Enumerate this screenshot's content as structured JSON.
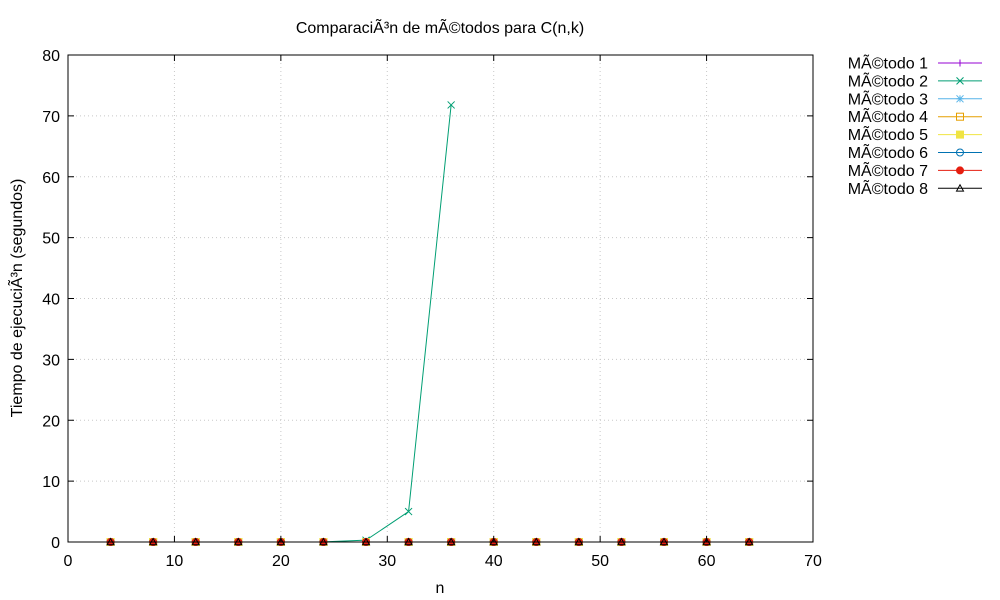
{
  "chart_data": {
    "type": "line",
    "title": "ComparaciÃ³n de mÃ©todos para C(n,k)",
    "xlabel": "n",
    "ylabel": "Tiempo de ejecuciÃ³n (segundos)",
    "xlim": [
      0,
      70
    ],
    "ylim": [
      0,
      80
    ],
    "xticks": [
      0,
      10,
      20,
      30,
      40,
      50,
      60,
      70
    ],
    "yticks": [
      0,
      10,
      20,
      30,
      40,
      50,
      60,
      70,
      80
    ],
    "xtick_labels": [
      "0",
      "10",
      "20",
      "30",
      "40",
      "50",
      "60",
      "70"
    ],
    "ytick_labels": [
      "0",
      "10",
      "20",
      "30",
      "40",
      "50",
      "60",
      "70",
      "80"
    ],
    "grid": true,
    "legend_position": "outside-right-top",
    "series": [
      {
        "name": "MÃ©todo 1",
        "color": "#9400d3",
        "marker": "plus",
        "points": [
          [
            4,
            0
          ],
          [
            8,
            0
          ],
          [
            12,
            0
          ],
          [
            16,
            0
          ],
          [
            20,
            0
          ],
          [
            24,
            0
          ],
          [
            28,
            0
          ],
          [
            32,
            0
          ],
          [
            36,
            0
          ],
          [
            40,
            0
          ],
          [
            44,
            0
          ],
          [
            48,
            0
          ],
          [
            52,
            0
          ],
          [
            56,
            0
          ],
          [
            60,
            0
          ],
          [
            64,
            0
          ]
        ]
      },
      {
        "name": "MÃ©todo 2",
        "color": "#009e73",
        "marker": "cross",
        "points": [
          [
            4,
            0
          ],
          [
            8,
            0
          ],
          [
            12,
            0
          ],
          [
            16,
            0
          ],
          [
            20,
            0
          ],
          [
            24,
            0.02
          ],
          [
            28,
            0.3
          ],
          [
            32,
            5
          ],
          [
            36,
            71.8
          ]
        ]
      },
      {
        "name": "MÃ©todo 3",
        "color": "#56b4e9",
        "marker": "star",
        "points": [
          [
            4,
            0
          ],
          [
            8,
            0
          ],
          [
            12,
            0
          ],
          [
            16,
            0
          ],
          [
            20,
            0
          ],
          [
            24,
            0
          ],
          [
            28,
            0
          ],
          [
            32,
            0
          ],
          [
            36,
            0
          ],
          [
            40,
            0
          ],
          [
            44,
            0
          ],
          [
            48,
            0
          ],
          [
            52,
            0
          ],
          [
            56,
            0
          ],
          [
            60,
            0
          ],
          [
            64,
            0
          ]
        ]
      },
      {
        "name": "MÃ©todo 4",
        "color": "#e69f00",
        "marker": "square-open",
        "points": [
          [
            4,
            0
          ],
          [
            8,
            0
          ],
          [
            12,
            0
          ],
          [
            16,
            0
          ],
          [
            20,
            0
          ],
          [
            24,
            0
          ],
          [
            28,
            0
          ],
          [
            32,
            0
          ],
          [
            36,
            0
          ],
          [
            40,
            0
          ],
          [
            44,
            0
          ],
          [
            48,
            0
          ],
          [
            52,
            0
          ],
          [
            56,
            0
          ],
          [
            60,
            0
          ],
          [
            64,
            0
          ]
        ]
      },
      {
        "name": "MÃ©todo 5",
        "color": "#f0e442",
        "marker": "square-filled",
        "points": [
          [
            4,
            0
          ],
          [
            8,
            0
          ],
          [
            12,
            0
          ],
          [
            16,
            0
          ],
          [
            20,
            0
          ],
          [
            24,
            0
          ],
          [
            28,
            0
          ],
          [
            32,
            0
          ],
          [
            36,
            0
          ],
          [
            40,
            0
          ],
          [
            44,
            0
          ],
          [
            48,
            0
          ],
          [
            52,
            0
          ],
          [
            56,
            0
          ],
          [
            60,
            0
          ],
          [
            64,
            0
          ]
        ]
      },
      {
        "name": "MÃ©todo 6",
        "color": "#0072b2",
        "marker": "circle-open",
        "points": [
          [
            4,
            0
          ],
          [
            8,
            0
          ],
          [
            12,
            0
          ],
          [
            16,
            0
          ],
          [
            20,
            0
          ],
          [
            24,
            0
          ],
          [
            28,
            0
          ],
          [
            32,
            0
          ],
          [
            36,
            0
          ],
          [
            40,
            0
          ],
          [
            44,
            0
          ],
          [
            48,
            0
          ],
          [
            52,
            0
          ],
          [
            56,
            0
          ],
          [
            60,
            0
          ],
          [
            64,
            0
          ]
        ]
      },
      {
        "name": "MÃ©todo 7",
        "color": "#e51e10",
        "marker": "circle-filled",
        "points": [
          [
            4,
            0
          ],
          [
            8,
            0
          ],
          [
            12,
            0
          ],
          [
            16,
            0
          ],
          [
            20,
            0
          ],
          [
            24,
            0
          ],
          [
            28,
            0
          ],
          [
            32,
            0
          ],
          [
            36,
            0
          ],
          [
            40,
            0
          ],
          [
            44,
            0
          ],
          [
            48,
            0
          ],
          [
            52,
            0
          ],
          [
            56,
            0
          ],
          [
            60,
            0
          ],
          [
            64,
            0
          ]
        ]
      },
      {
        "name": "MÃ©todo 8",
        "color": "#000000",
        "marker": "triangle-open",
        "points": [
          [
            4,
            0
          ],
          [
            8,
            0
          ],
          [
            12,
            0
          ],
          [
            16,
            0
          ],
          [
            20,
            0
          ],
          [
            24,
            0
          ],
          [
            28,
            0
          ],
          [
            32,
            0
          ],
          [
            36,
            0
          ],
          [
            40,
            0
          ],
          [
            44,
            0
          ],
          [
            48,
            0
          ],
          [
            52,
            0
          ],
          [
            56,
            0
          ],
          [
            60,
            0
          ],
          [
            64,
            0
          ]
        ]
      }
    ]
  }
}
